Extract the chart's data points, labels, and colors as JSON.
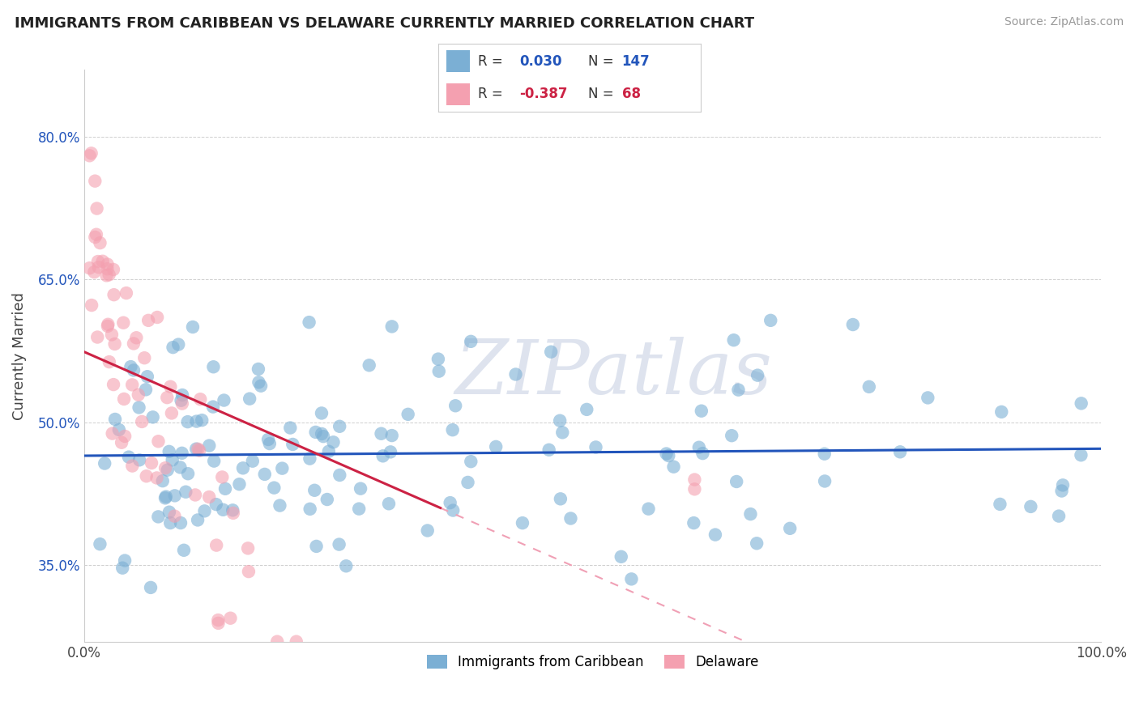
{
  "title": "IMMIGRANTS FROM CARIBBEAN VS DELAWARE CURRENTLY MARRIED CORRELATION CHART",
  "source": "Source: ZipAtlas.com",
  "ylabel": "Currently Married",
  "y_tick_values": [
    0.35,
    0.5,
    0.65,
    0.8
  ],
  "x_lim": [
    0.0,
    1.0
  ],
  "y_lim": [
    0.27,
    0.87
  ],
  "blue_color": "#7BAFD4",
  "pink_color": "#F4A0B0",
  "blue_line_color": "#2255BB",
  "pink_line_color": "#CC2244",
  "pink_line_ext_color": "#F0A0B5",
  "legend_label_blue": "Immigrants from Caribbean",
  "legend_label_pink": "Delaware",
  "R_blue": 0.03,
  "N_blue": 147,
  "R_pink": -0.387,
  "N_pink": 68,
  "watermark": "ZIPatlas",
  "background_color": "#ffffff",
  "grid_color": "#bbbbbb",
  "blue_seed": 42,
  "pink_seed": 99
}
